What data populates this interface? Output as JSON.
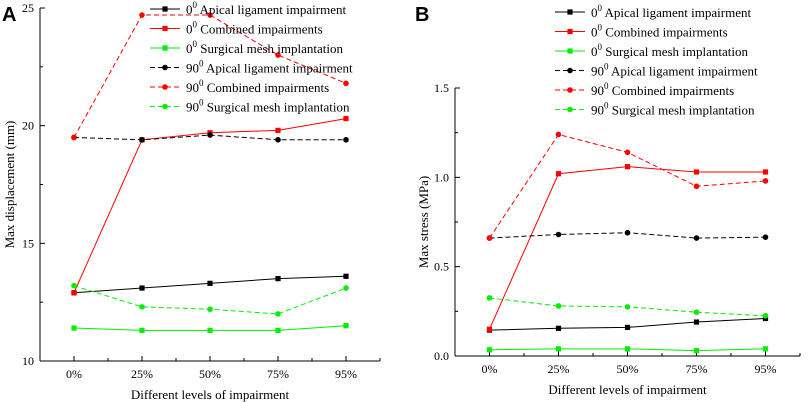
{
  "chart_data": [
    {
      "type": "line",
      "panel_label": "A",
      "title": "",
      "xlabel": "Different levels of impairment",
      "ylabel": "Max displacement (mm)",
      "categories": [
        "0%",
        "25%",
        "50%",
        "75%",
        "95%"
      ],
      "ylim": [
        10,
        25
      ],
      "yticks": [
        "10",
        "15",
        "20",
        "25"
      ],
      "legend_position": "top-right",
      "series": [
        {
          "name": "0⁰ Apical ligament impairment",
          "angle": "0",
          "label": "Apical ligament impairment",
          "color": "#000000",
          "dash": "solid",
          "values": [
            12.9,
            13.1,
            13.3,
            13.5,
            13.6
          ]
        },
        {
          "name": "0⁰ Combined impairments",
          "angle": "0",
          "label": "Combined impairments",
          "color": "#ff0000",
          "dash": "solid",
          "values": [
            12.9,
            19.4,
            19.7,
            19.8,
            20.3
          ]
        },
        {
          "name": "0⁰ Surgical mesh implantation",
          "angle": "0",
          "label": "Surgical mesh implantation",
          "color": "#00ee00",
          "dash": "solid",
          "values": [
            11.4,
            11.3,
            11.3,
            11.3,
            11.5
          ]
        },
        {
          "name": "90⁰ Apical ligament impairment",
          "angle": "90",
          "label": "Apical ligament impairment",
          "color": "#000000",
          "dash": "dashed",
          "values": [
            19.5,
            19.4,
            19.6,
            19.4,
            19.4
          ]
        },
        {
          "name": "90⁰ Combined impairments",
          "angle": "90",
          "label": "Combined impairments",
          "color": "#ff0000",
          "dash": "dashed",
          "values": [
            19.5,
            24.7,
            24.7,
            23.0,
            21.8
          ]
        },
        {
          "name": "90⁰ Surgical mesh implantation",
          "angle": "90",
          "label": "Surgical mesh implantation",
          "color": "#00ee00",
          "dash": "dashed",
          "values": [
            13.2,
            12.3,
            12.2,
            12.0,
            13.1
          ]
        }
      ]
    },
    {
      "type": "line",
      "panel_label": "B",
      "title": "",
      "xlabel": "Different levels of impairment",
      "ylabel": "Max stress (MPa)",
      "categories": [
        "0%",
        "25%",
        "50%",
        "75%",
        "95%"
      ],
      "ylim": [
        0,
        1.5
      ],
      "yticks": [
        "0.0",
        "0.5",
        "1.0",
        "1.5"
      ],
      "legend_position": "top-right",
      "series": [
        {
          "name": "0⁰ Apical ligament impairment",
          "angle": "0",
          "label": "Apical ligament impairment",
          "color": "#000000",
          "dash": "solid",
          "values": [
            0.145,
            0.155,
            0.16,
            0.19,
            0.21
          ]
        },
        {
          "name": "0⁰ Combined impairments",
          "angle": "0",
          "label": "Combined impairments",
          "color": "#ff0000",
          "dash": "solid",
          "values": [
            0.15,
            1.02,
            1.06,
            1.03,
            1.03
          ]
        },
        {
          "name": "0⁰ Surgical mesh implantation",
          "angle": "0",
          "label": "Surgical mesh implantation",
          "color": "#00ee00",
          "dash": "solid",
          "values": [
            0.035,
            0.04,
            0.04,
            0.03,
            0.04
          ]
        },
        {
          "name": "90⁰ Apical ligament impairment",
          "angle": "90",
          "label": "Apical ligament impairment",
          "color": "#000000",
          "dash": "dashed",
          "values": [
            0.66,
            0.68,
            0.69,
            0.66,
            0.665
          ]
        },
        {
          "name": "90⁰ Combined impairments",
          "angle": "90",
          "label": "Combined impairments",
          "color": "#ff0000",
          "dash": "dashed",
          "values": [
            0.66,
            1.24,
            1.14,
            0.95,
            0.98
          ]
        },
        {
          "name": "90⁰ Surgical mesh implantation",
          "angle": "90",
          "label": "Surgical mesh implantation",
          "color": "#00ee00",
          "dash": "dashed",
          "values": [
            0.325,
            0.28,
            0.275,
            0.245,
            0.225
          ]
        }
      ]
    }
  ]
}
